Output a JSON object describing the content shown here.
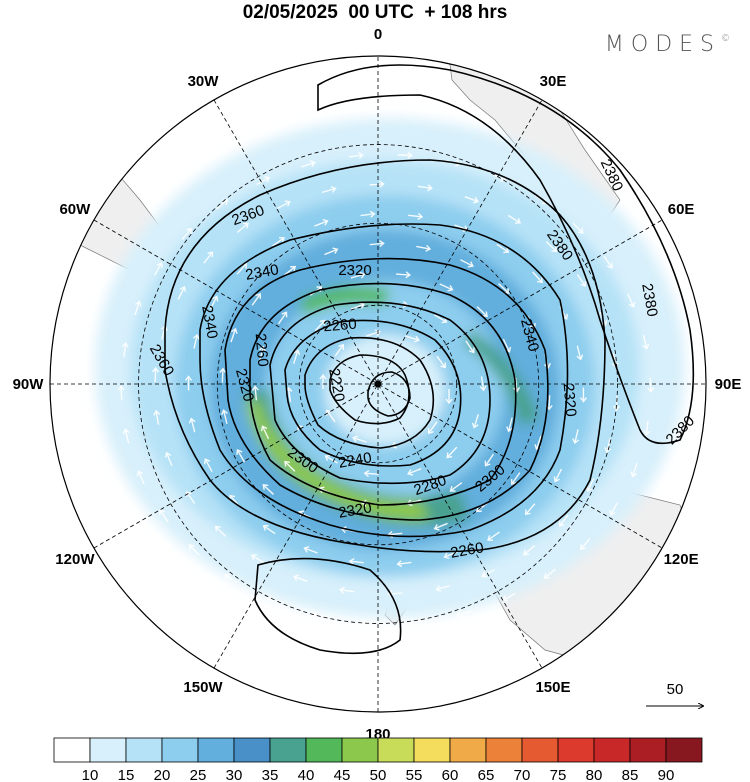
{
  "title": "02/05/2025  00 UTC  + 108 hrs",
  "brand": {
    "name": "MODES",
    "mark": "©"
  },
  "longitude_labels": [
    {
      "text": "0",
      "lon": 0
    },
    {
      "text": "30E",
      "lon": 30
    },
    {
      "text": "60E",
      "lon": 60
    },
    {
      "text": "90E",
      "lon": 90
    },
    {
      "text": "120E",
      "lon": 120
    },
    {
      "text": "150E",
      "lon": 150
    },
    {
      "text": "180",
      "lon": 180
    },
    {
      "text": "150W",
      "lon": -150
    },
    {
      "text": "120W",
      "lon": -120
    },
    {
      "text": "90W",
      "lon": -90
    },
    {
      "text": "60W",
      "lon": -60
    },
    {
      "text": "30W",
      "lon": -30
    }
  ],
  "contour_labels": [
    "2380",
    "2380",
    "2380",
    "2380",
    "2360",
    "2360",
    "2340",
    "2340",
    "2340",
    "2320",
    "2320",
    "2320",
    "2320",
    "2300",
    "2300",
    "2280",
    "2260",
    "2260",
    "2260",
    "2240",
    "2220"
  ],
  "vector_reference": {
    "label": "50"
  },
  "colorbar": {
    "colors": [
      "#ffffff",
      "#d8f0fb",
      "#b6e2f7",
      "#8dcdee",
      "#62aedd",
      "#4a90c8",
      "#48a28f",
      "#52b85a",
      "#8cc84c",
      "#c8dc5a",
      "#f4dc5c",
      "#f0aa48",
      "#ec823a",
      "#e65a32",
      "#dc3a2c",
      "#c82828",
      "#aa1e24",
      "#881820"
    ],
    "tick_labels": [
      "10",
      "15",
      "20",
      "25",
      "30",
      "35",
      "40",
      "45",
      "50",
      "55",
      "60",
      "65",
      "70",
      "75",
      "80",
      "85",
      "90"
    ]
  }
}
